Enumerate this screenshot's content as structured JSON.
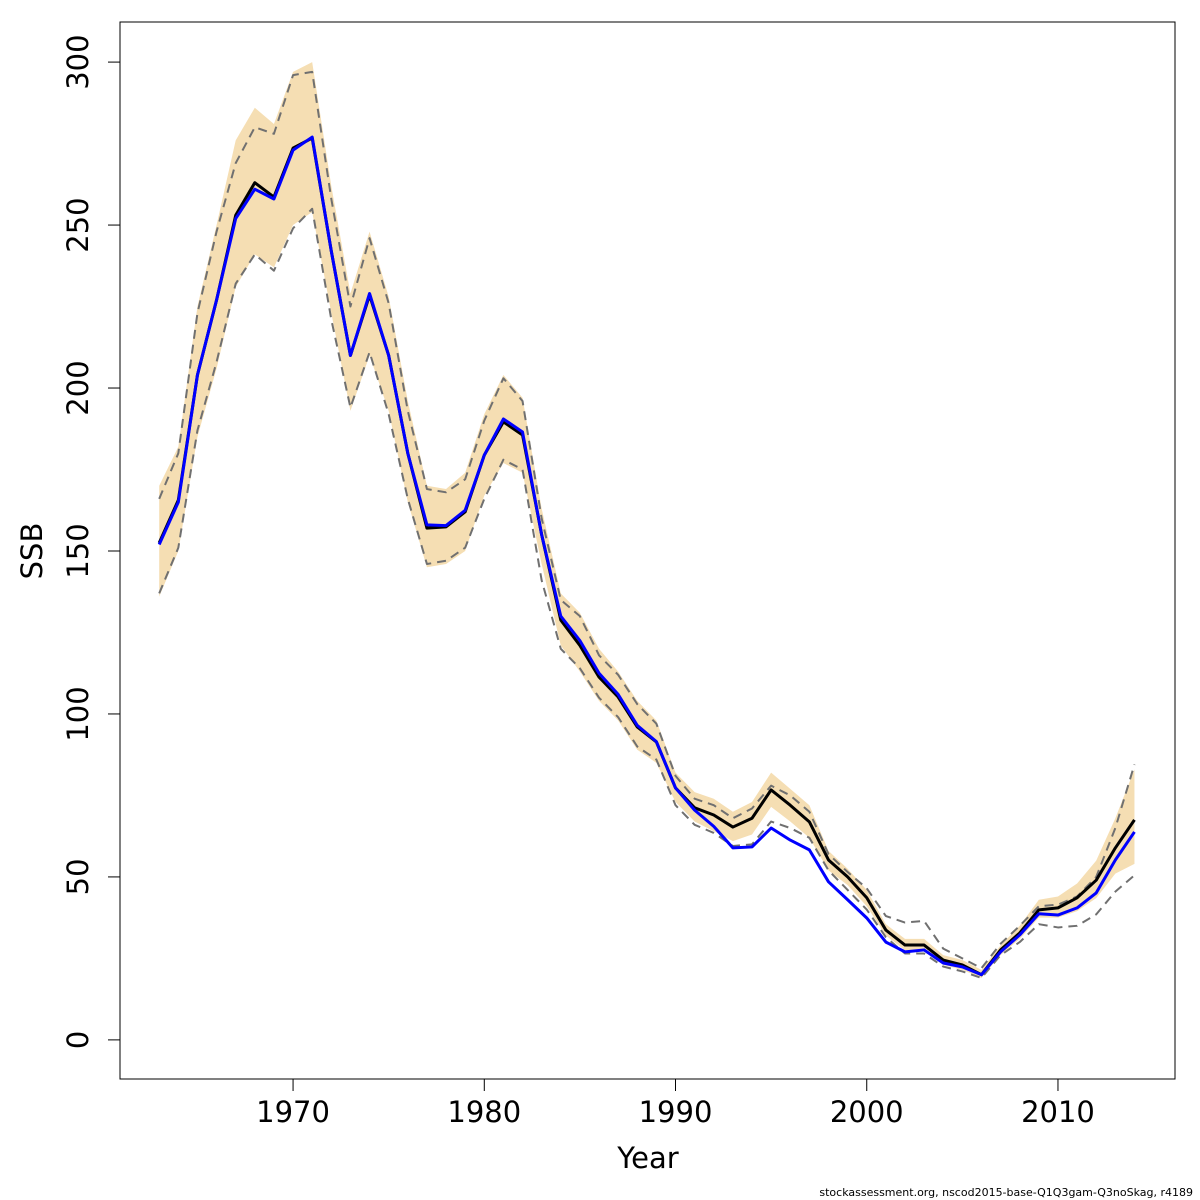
{
  "chart_data": {
    "type": "line",
    "x_label": "Year",
    "y_label": "SSB",
    "footnote": "stockassessment.org, nscod2015-base-Q1Q3gam-Q3noSkag, r4189",
    "x": [
      1963,
      1964,
      1965,
      1966,
      1967,
      1968,
      1969,
      1970,
      1971,
      1972,
      1973,
      1974,
      1975,
      1976,
      1977,
      1978,
      1979,
      1980,
      1981,
      1982,
      1983,
      1984,
      1985,
      1986,
      1987,
      1988,
      1989,
      1990,
      1991,
      1992,
      1993,
      1994,
      1995,
      1996,
      1997,
      1998,
      1999,
      2000,
      2001,
      2002,
      2003,
      2004,
      2005,
      2006,
      2007,
      2008,
      2009,
      2010,
      2011,
      2012,
      2013,
      2014
    ],
    "band": {
      "color": "#f5deb3",
      "upper": [
        170,
        182,
        225,
        250,
        276,
        286,
        281,
        297,
        300,
        262,
        229,
        248,
        228,
        196,
        170,
        169,
        174,
        192,
        204,
        197,
        163,
        137,
        131,
        120,
        113,
        104,
        98,
        82,
        76,
        74,
        70,
        73,
        82,
        77,
        72,
        58,
        52.5,
        46,
        35.5,
        31,
        31,
        26,
        24.5,
        21.5,
        29,
        35,
        43,
        44,
        48,
        55,
        68,
        83
      ],
      "lower": [
        136,
        150,
        185,
        206,
        231,
        241,
        237,
        250,
        254,
        223,
        193,
        210,
        193,
        165,
        145,
        146,
        150,
        167,
        177,
        174,
        146,
        121,
        113,
        104,
        98,
        89,
        85,
        73,
        67,
        64,
        61,
        63,
        71.5,
        67,
        62,
        52,
        47.5,
        41,
        32,
        27.5,
        27.5,
        23,
        21.5,
        19,
        26,
        31,
        37.5,
        37.5,
        39.5,
        43.5,
        51,
        54
      ]
    },
    "series": [
      {
        "color": "#707070",
        "dashed": true,
        "values": [
          166,
          180,
          223,
          248,
          269,
          280,
          278,
          296,
          297,
          258,
          225,
          246,
          226,
          193,
          169,
          168,
          172,
          190,
          203,
          196,
          160,
          135,
          130,
          118,
          112,
          103,
          97,
          81,
          74,
          72,
          68,
          71,
          78,
          75,
          70,
          57,
          51.5,
          46.5,
          38,
          36,
          36.5,
          28,
          25,
          22,
          29.5,
          35,
          41,
          41.5,
          44,
          50,
          65,
          84.5
        ]
      },
      {
        "color": "#707070",
        "dashed": true,
        "values": [
          137,
          151,
          187,
          208,
          232,
          241,
          236,
          249,
          255,
          221,
          194,
          211,
          192,
          166,
          146,
          147,
          151,
          166,
          178,
          175,
          141,
          120,
          114,
          105,
          99,
          90,
          86,
          72,
          66,
          63.5,
          59.5,
          60,
          67,
          65,
          62,
          52,
          46,
          40,
          31.5,
          26.5,
          26.5,
          22.5,
          21,
          19,
          26,
          30,
          35.5,
          34.5,
          35,
          38.5,
          45.5,
          50.5
        ]
      },
      {
        "color": "#000000",
        "dashed": false,
        "values": [
          152.5,
          165.6,
          204,
          227,
          253,
          263,
          258.6,
          273.6,
          276.7,
          242,
          210,
          228.5,
          210,
          180,
          157,
          157.4,
          162,
          179.4,
          189.6,
          185.6,
          155,
          128.8,
          121,
          111.3,
          105.2,
          96,
          91.4,
          77.3,
          71.2,
          69,
          65.3,
          68,
          76.7,
          72,
          66.9,
          55.2,
          50,
          43.6,
          33.7,
          29.1,
          29.1,
          24.5,
          23,
          20,
          27.6,
          32.8,
          39.9,
          40.5,
          43.6,
          49,
          58.9,
          67.5
        ]
      },
      {
        "color": "#0000ff",
        "dashed": false,
        "values": [
          152,
          165,
          204,
          227,
          252,
          261,
          258,
          273,
          277,
          242,
          210,
          229,
          210,
          180,
          158,
          157.8,
          162.5,
          179.4,
          190.5,
          186.5,
          155,
          130,
          122.5,
          112.5,
          106,
          96.5,
          91.5,
          77.3,
          70.5,
          65.5,
          58.9,
          59.2,
          65,
          61.3,
          58.3,
          48.5,
          43,
          37.4,
          30,
          27,
          27.6,
          23.6,
          22.4,
          20,
          27,
          32.2,
          38.7,
          38.3,
          40.5,
          45.1,
          55.2,
          63.8
        ]
      }
    ],
    "xlim": [
      1960.95,
      2016.12
    ],
    "ylim": [
      -12,
      312.3
    ],
    "xticks": [
      1970,
      1980,
      1990,
      2000,
      2010
    ],
    "yticks": [
      0,
      50,
      100,
      150,
      200,
      250,
      300
    ]
  }
}
